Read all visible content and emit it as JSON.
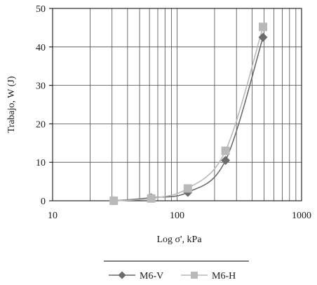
{
  "chart_data": {
    "type": "line",
    "x_scale": "log",
    "xlabel": "Log σ', kPa",
    "ylabel": "Trabajo, W (J)",
    "xlim": [
      10,
      1000
    ],
    "ylim": [
      0,
      50
    ],
    "x_tick_labels": [
      "10",
      "100",
      "1000"
    ],
    "y_ticks": [
      0,
      10,
      20,
      30,
      40,
      50
    ],
    "grid": true,
    "legend_position": "bottom",
    "series": [
      {
        "name": "M6-V",
        "color": "#6b6b6b",
        "marker": "diamond",
        "x": [
          31,
          62,
          122,
          245,
          490
        ],
        "y": [
          0,
          0.8,
          2.2,
          10.5,
          42.5
        ]
      },
      {
        "name": "M6-H",
        "color": "#b9b9b9",
        "marker": "square",
        "x": [
          31,
          62,
          122,
          245,
          490
        ],
        "y": [
          0,
          0.6,
          3.2,
          13.0,
          45.2
        ]
      }
    ]
  }
}
